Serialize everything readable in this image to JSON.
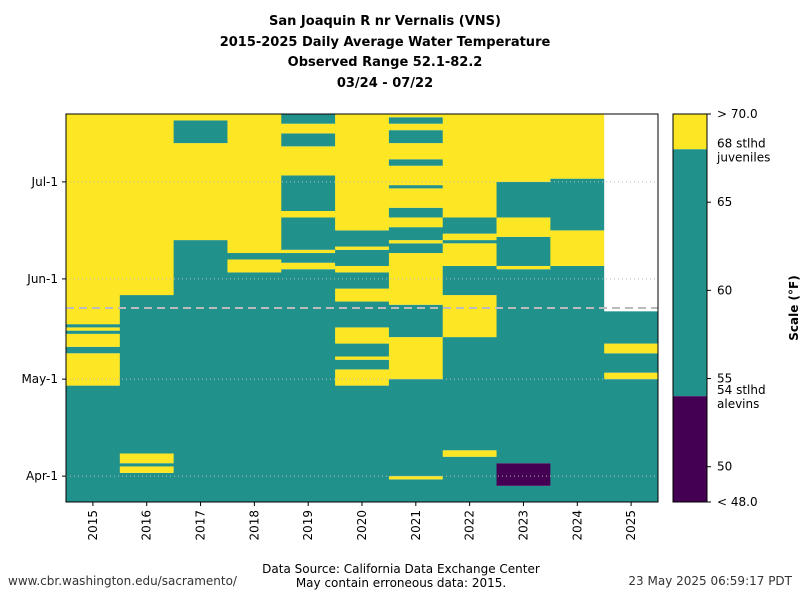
{
  "title_lines": [
    "San Joaquin R nr Vernalis (VNS)",
    "2015-2025 Daily Average Water Temperature",
    "Observed Range 52.1-82.2",
    "03/24 - 07/22"
  ],
  "footer": {
    "left": "www.cbr.washington.edu/sacramento/",
    "center_1": "Data Source: California Data Exchange Center",
    "center_2": "May contain erroneous data: 2015.",
    "right": "23 May 2025 06:59:17 PDT"
  },
  "colors": {
    "low": "#440154",
    "mid": "#21918c",
    "high": "#fde725",
    "nodata": "#ffffff"
  },
  "chart_data": {
    "type": "heatmap",
    "x_categories": [
      "2015",
      "2016",
      "2017",
      "2018",
      "2019",
      "2020",
      "2021",
      "2022",
      "2023",
      "2024",
      "2025"
    ],
    "y_range": [
      "03/24",
      "07/22"
    ],
    "y_ticks": [
      "Apr-1",
      "May-1",
      "Jun-1",
      "Jul-1"
    ],
    "y_tick_dates": [
      "04/01",
      "05/01",
      "06/01",
      "07/01"
    ],
    "current_date_line": "05/23",
    "bins": [
      "< 54",
      "54 - 68",
      "> 68"
    ],
    "colorbar": {
      "label": "Scale (°F)",
      "range": [
        48,
        70
      ],
      "tick_labels": [
        "> 70.0",
        "65",
        "60",
        "55",
        "50",
        "< 48.0"
      ],
      "tick_values": [
        70,
        65,
        60,
        55,
        50,
        48
      ],
      "thresholds": [
        {
          "value": 68,
          "line1": "68 stlhd",
          "line2": "juveniles"
        },
        {
          "value": 54,
          "line1": "54 stlhd",
          "line2": "alevins"
        }
      ]
    },
    "series": [
      {
        "year": "2015",
        "segments": [
          [
            "03/24",
            "04/29",
            "mid"
          ],
          [
            "04/29",
            "05/09",
            "high"
          ],
          [
            "05/09",
            "05/11",
            "mid"
          ],
          [
            "05/11",
            "05/15",
            "high"
          ],
          [
            "05/15",
            "05/16",
            "mid"
          ],
          [
            "05/16",
            "05/17",
            "high"
          ],
          [
            "05/17",
            "05/18",
            "mid"
          ],
          [
            "05/18",
            "07/22",
            "high"
          ]
        ]
      },
      {
        "year": "2016",
        "segments": [
          [
            "03/24",
            "04/02",
            "mid"
          ],
          [
            "04/02",
            "04/04",
            "high"
          ],
          [
            "04/04",
            "04/05",
            "mid"
          ],
          [
            "04/05",
            "04/08",
            "high"
          ],
          [
            "04/08",
            "05/27",
            "mid"
          ],
          [
            "05/27",
            "07/22",
            "high"
          ]
        ]
      },
      {
        "year": "2017",
        "segments": [
          [
            "03/24",
            "06/13",
            "mid"
          ],
          [
            "06/13",
            "07/13",
            "high"
          ],
          [
            "07/13",
            "07/20",
            "mid"
          ],
          [
            "07/20",
            "07/22",
            "high"
          ]
        ]
      },
      {
        "year": "2018",
        "segments": [
          [
            "03/24",
            "06/03",
            "mid"
          ],
          [
            "06/03",
            "06/07",
            "high"
          ],
          [
            "06/07",
            "06/09",
            "mid"
          ],
          [
            "06/09",
            "07/22",
            "high"
          ]
        ]
      },
      {
        "year": "2019",
        "segments": [
          [
            "03/24",
            "06/04",
            "mid"
          ],
          [
            "06/04",
            "06/06",
            "high"
          ],
          [
            "06/06",
            "06/09",
            "mid"
          ],
          [
            "06/09",
            "06/10",
            "high"
          ],
          [
            "06/10",
            "06/20",
            "mid"
          ],
          [
            "06/20",
            "06/22",
            "high"
          ],
          [
            "06/22",
            "07/03",
            "mid"
          ],
          [
            "07/03",
            "07/12",
            "high"
          ],
          [
            "07/12",
            "07/16",
            "mid"
          ],
          [
            "07/16",
            "07/19",
            "high"
          ],
          [
            "07/19",
            "07/22",
            "mid"
          ]
        ]
      },
      {
        "year": "2020",
        "segments": [
          [
            "03/24",
            "04/29",
            "mid"
          ],
          [
            "04/29",
            "05/04",
            "high"
          ],
          [
            "05/04",
            "05/07",
            "mid"
          ],
          [
            "05/07",
            "05/08",
            "high"
          ],
          [
            "05/08",
            "05/12",
            "mid"
          ],
          [
            "05/12",
            "05/17",
            "high"
          ],
          [
            "05/17",
            "05/25",
            "mid"
          ],
          [
            "05/25",
            "05/29",
            "high"
          ],
          [
            "05/29",
            "06/03",
            "mid"
          ],
          [
            "06/03",
            "06/05",
            "high"
          ],
          [
            "06/05",
            "06/10",
            "mid"
          ],
          [
            "06/10",
            "06/11",
            "high"
          ],
          [
            "06/11",
            "06/16",
            "mid"
          ],
          [
            "06/16",
            "07/22",
            "high"
          ]
        ]
      },
      {
        "year": "2021",
        "segments": [
          [
            "03/24",
            "03/31",
            "mid"
          ],
          [
            "03/31",
            "04/01",
            "high"
          ],
          [
            "04/01",
            "05/01",
            "mid"
          ],
          [
            "05/01",
            "05/14",
            "high"
          ],
          [
            "05/14",
            "05/24",
            "mid"
          ],
          [
            "05/24",
            "06/09",
            "high"
          ],
          [
            "06/09",
            "06/12",
            "mid"
          ],
          [
            "06/12",
            "06/13",
            "high"
          ],
          [
            "06/13",
            "06/17",
            "mid"
          ],
          [
            "06/17",
            "06/20",
            "high"
          ],
          [
            "06/20",
            "06/23",
            "mid"
          ],
          [
            "06/23",
            "06/29",
            "high"
          ],
          [
            "06/29",
            "06/30",
            "mid"
          ],
          [
            "06/30",
            "07/06",
            "high"
          ],
          [
            "07/06",
            "07/08",
            "mid"
          ],
          [
            "07/08",
            "07/13",
            "high"
          ],
          [
            "07/13",
            "07/17",
            "mid"
          ],
          [
            "07/17",
            "07/19",
            "high"
          ],
          [
            "07/19",
            "07/21",
            "mid"
          ],
          [
            "07/21",
            "07/22",
            "high"
          ]
        ]
      },
      {
        "year": "2022",
        "segments": [
          [
            "03/24",
            "04/07",
            "mid"
          ],
          [
            "04/07",
            "04/09",
            "high"
          ],
          [
            "04/09",
            "05/14",
            "mid"
          ],
          [
            "05/14",
            "05/27",
            "high"
          ],
          [
            "05/27",
            "06/05",
            "mid"
          ],
          [
            "06/05",
            "06/12",
            "high"
          ],
          [
            "06/12",
            "06/13",
            "mid"
          ],
          [
            "06/13",
            "06/15",
            "high"
          ],
          [
            "06/15",
            "06/20",
            "mid"
          ],
          [
            "06/20",
            "07/22",
            "high"
          ]
        ]
      },
      {
        "year": "2023",
        "segments": [
          [
            "03/24",
            "03/29",
            "mid"
          ],
          [
            "03/29",
            "04/05",
            "low"
          ],
          [
            "04/05",
            "06/04",
            "mid"
          ],
          [
            "06/04",
            "06/05",
            "high"
          ],
          [
            "06/05",
            "06/14",
            "mid"
          ],
          [
            "06/14",
            "06/20",
            "high"
          ],
          [
            "06/20",
            "07/01",
            "mid"
          ],
          [
            "07/01",
            "07/22",
            "high"
          ]
        ]
      },
      {
        "year": "2024",
        "segments": [
          [
            "03/24",
            "06/05",
            "mid"
          ],
          [
            "06/05",
            "06/16",
            "high"
          ],
          [
            "06/16",
            "07/02",
            "mid"
          ],
          [
            "07/02",
            "07/22",
            "high"
          ]
        ]
      },
      {
        "year": "2025",
        "segments": [
          [
            "03/24",
            "05/01",
            "mid"
          ],
          [
            "05/01",
            "05/03",
            "high"
          ],
          [
            "05/03",
            "05/09",
            "mid"
          ],
          [
            "05/09",
            "05/12",
            "high"
          ],
          [
            "05/12",
            "05/22",
            "mid"
          ],
          [
            "05/22",
            "07/22",
            "nodata"
          ]
        ]
      }
    ]
  }
}
